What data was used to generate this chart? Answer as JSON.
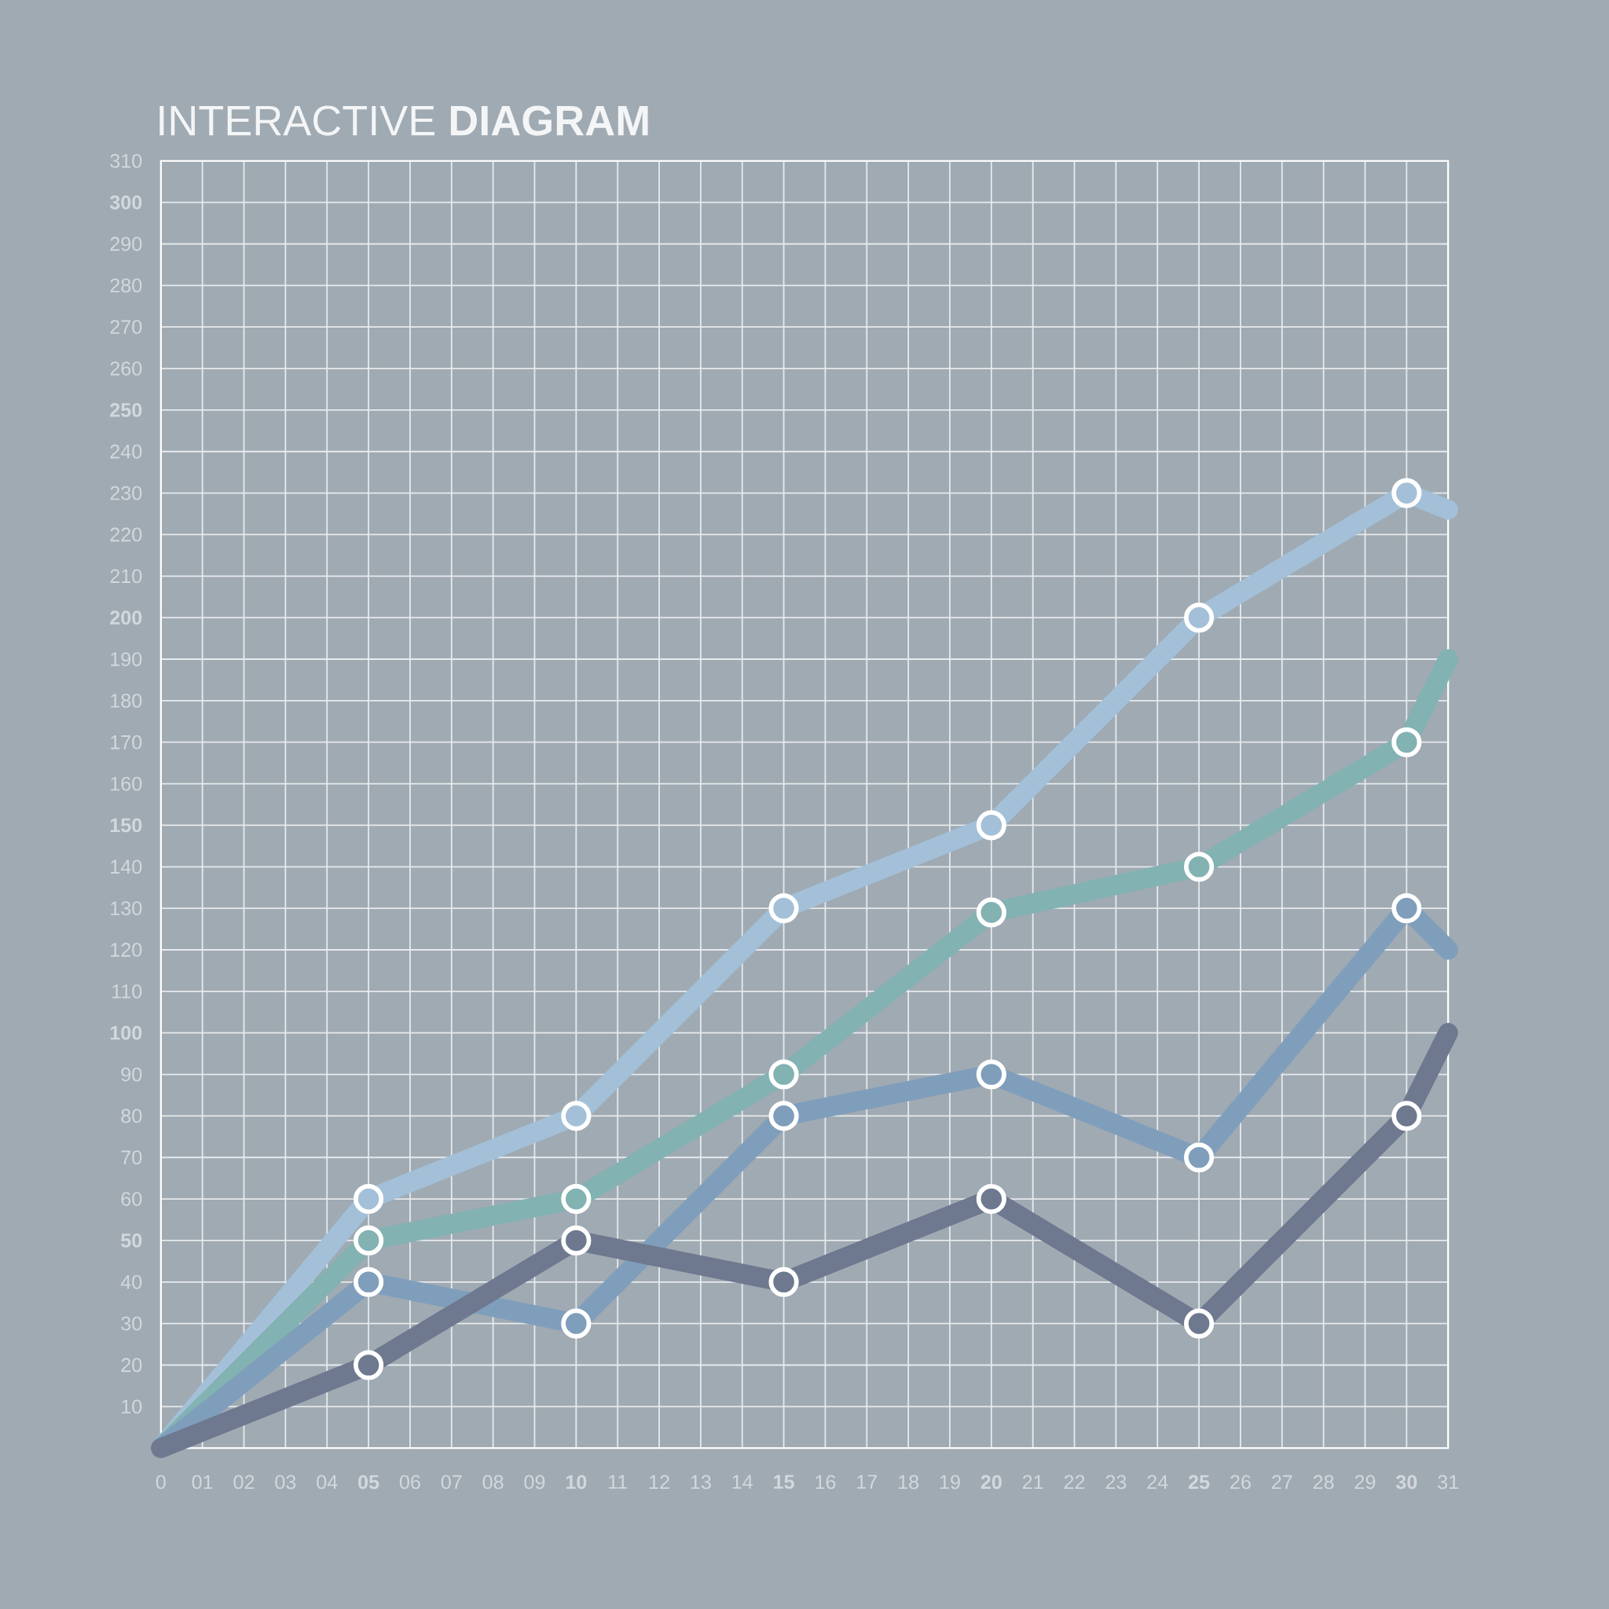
{
  "chart_data": {
    "type": "line",
    "title": "INTERACTIVE **DIAGRAM**",
    "x": [
      0,
      5,
      10,
      15,
      20,
      25,
      30,
      31
    ],
    "series": [
      {
        "color": "#a3c0d8",
        "values": [
          0,
          60,
          80,
          130,
          150,
          200,
          230,
          226
        ]
      },
      {
        "color": "#82b2b2",
        "values": [
          0,
          50,
          60,
          90,
          129,
          140,
          170,
          190
        ]
      },
      {
        "color": "#7f9ebc",
        "values": [
          0,
          40,
          30,
          80,
          90,
          70,
          130,
          120
        ]
      },
      {
        "color": "#6e7990",
        "values": [
          0,
          20,
          50,
          40,
          60,
          30,
          80,
          100
        ]
      }
    ],
    "xlim": [
      0,
      31
    ],
    "ylim": [
      0,
      310
    ],
    "xticks": [
      {
        "value": 0,
        "label": "0"
      },
      {
        "value": 1,
        "label": "01"
      },
      {
        "value": 2,
        "label": "02"
      },
      {
        "value": 3,
        "label": "03"
      },
      {
        "value": 4,
        "label": "04"
      },
      {
        "value": 5,
        "label": "**05**"
      },
      {
        "value": 6,
        "label": "06"
      },
      {
        "value": 7,
        "label": "07"
      },
      {
        "value": 8,
        "label": "08"
      },
      {
        "value": 9,
        "label": "09"
      },
      {
        "value": 10,
        "label": "**10**"
      },
      {
        "value": 11,
        "label": "11"
      },
      {
        "value": 12,
        "label": "12"
      },
      {
        "value": 13,
        "label": "13"
      },
      {
        "value": 14,
        "label": "14"
      },
      {
        "value": 15,
        "label": "**15**"
      },
      {
        "value": 16,
        "label": "16"
      },
      {
        "value": 17,
        "label": "17"
      },
      {
        "value": 18,
        "label": "18"
      },
      {
        "value": 19,
        "label": "19"
      },
      {
        "value": 20,
        "label": "**20**"
      },
      {
        "value": 21,
        "label": "21"
      },
      {
        "value": 22,
        "label": "22"
      },
      {
        "value": 23,
        "label": "23"
      },
      {
        "value": 24,
        "label": "24"
      },
      {
        "value": 25,
        "label": "**25**"
      },
      {
        "value": 26,
        "label": "26"
      },
      {
        "value": 27,
        "label": "27"
      },
      {
        "value": 28,
        "label": "28"
      },
      {
        "value": 29,
        "label": "29"
      },
      {
        "value": 30,
        "label": "**30**"
      },
      {
        "value": 31,
        "label": "31"
      }
    ],
    "yticks": [
      {
        "value": 0,
        "label": null
      },
      10,
      20,
      30,
      40,
      {
        "value": 50,
        "label": "**50**"
      },
      60,
      70,
      80,
      90,
      {
        "value": 100,
        "label": "**100**"
      },
      110,
      120,
      130,
      140,
      {
        "value": 150,
        "label": "**150**"
      },
      160,
      170,
      180,
      190,
      {
        "value": 200,
        "label": "**200**"
      },
      210,
      220,
      230,
      240,
      {
        "value": 250,
        "label": "**250**"
      },
      260,
      270,
      280,
      290,
      {
        "value": 300,
        "label": "**300**"
      },
      310
    ],
    "grid": true,
    "marker": "circle",
    "line_style": "solid"
  }
}
